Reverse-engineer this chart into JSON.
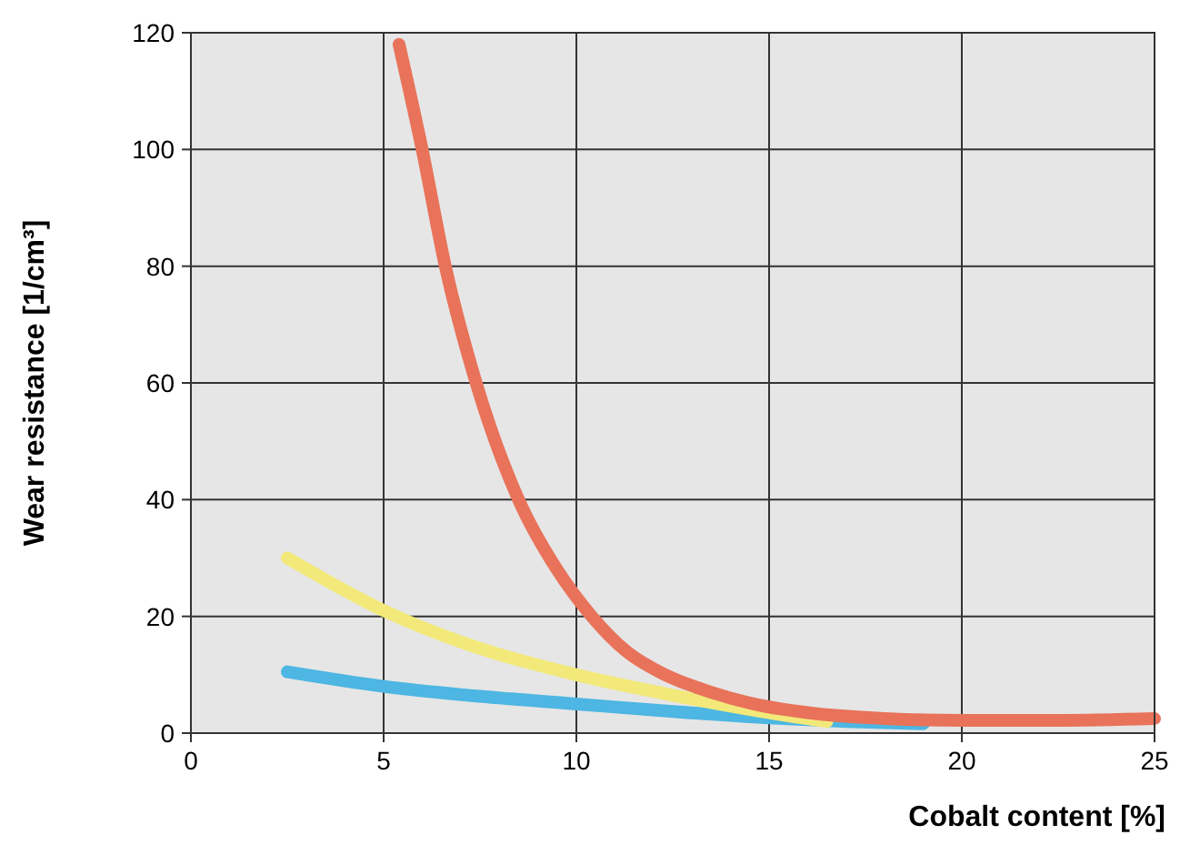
{
  "chart_data": {
    "type": "line",
    "xlabel": "Cobalt content [%]",
    "ylabel": "Wear resistance [1/cm³]",
    "xlim": [
      0,
      25
    ],
    "ylim": [
      0,
      120
    ],
    "xticks": [
      0,
      5,
      10,
      15,
      20,
      25
    ],
    "yticks": [
      0,
      20,
      40,
      60,
      80,
      100,
      120
    ],
    "grid": true,
    "marker": "none",
    "line_style": "solid",
    "series": [
      {
        "color": "#4db6e2",
        "x": [
          2.5,
          5,
          7.5,
          10,
          12.5,
          15,
          17,
          19
        ],
        "values": [
          10.5,
          8,
          6.3,
          5,
          3.7,
          2.6,
          2,
          1.6
        ]
      },
      {
        "color": "#f2e97a",
        "x": [
          2.5,
          5,
          7.5,
          10,
          12.5,
          15,
          16.5
        ],
        "values": [
          30,
          21,
          14.5,
          10,
          6.5,
          3.5,
          2
        ]
      },
      {
        "color": "#e8735a",
        "x": [
          5.4,
          6,
          6.6,
          7.4,
          8.5,
          9.5,
          10.4,
          11.3,
          12.3,
          13.5,
          14.6,
          16,
          18,
          20,
          22.5,
          25
        ],
        "values": [
          118,
          100,
          80,
          60,
          40,
          28,
          20,
          14,
          10,
          7,
          5,
          3.5,
          2.5,
          2.2,
          2.2,
          2.5
        ]
      }
    ]
  }
}
